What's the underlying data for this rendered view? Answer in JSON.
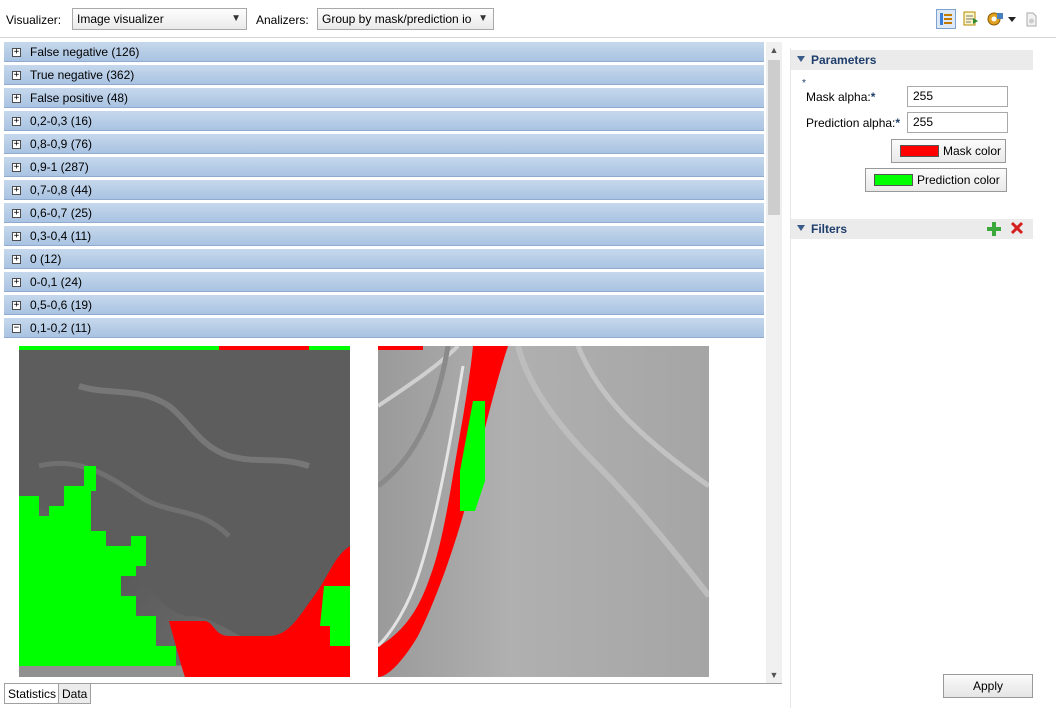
{
  "toolbar": {
    "visualizer_label": "Visualizer:",
    "visualizer_value": "Image visualizer",
    "analyzers_label": "Analizers:",
    "analyzers_value": "Group by mask/prediction io",
    "icons": [
      "layout-icon",
      "export-icon",
      "settings-icon",
      "dropdown-arrow-icon",
      "disk-icon"
    ]
  },
  "groups": [
    {
      "label": "False negative (126)",
      "expanded": false
    },
    {
      "label": "True negative (362)",
      "expanded": false
    },
    {
      "label": "False positive (48)",
      "expanded": false
    },
    {
      "label": "0,2-0,3 (16)",
      "expanded": false
    },
    {
      "label": "0,8-0,9 (76)",
      "expanded": false
    },
    {
      "label": "0,9-1 (287)",
      "expanded": false
    },
    {
      "label": "0,7-0,8 (44)",
      "expanded": false
    },
    {
      "label": "0,6-0,7 (25)",
      "expanded": false
    },
    {
      "label": "0,3-0,4 (11)",
      "expanded": false
    },
    {
      "label": "0 (12)",
      "expanded": false
    },
    {
      "label": "0-0,1 (24)",
      "expanded": false
    },
    {
      "label": "0,5-0,6 (19)",
      "expanded": false
    },
    {
      "label": "0,1-0,2 (11)",
      "expanded": true
    }
  ],
  "bottom_tabs": [
    {
      "label": "Statistics",
      "selected": true
    },
    {
      "label": "Data",
      "selected": false
    }
  ],
  "parameters": {
    "title": "Parameters",
    "asterisk": "*",
    "mask_alpha_label": "Mask alpha:",
    "mask_alpha_value": "255",
    "prediction_alpha_label": "Prediction alpha:",
    "prediction_alpha_value": "255",
    "required_mark": "*",
    "mask_color_label": "Mask color",
    "mask_color": "#ff0000",
    "prediction_color_label": "Prediction color",
    "prediction_color": "#00ff00"
  },
  "filters": {
    "title": "Filters"
  },
  "apply_label": "Apply"
}
